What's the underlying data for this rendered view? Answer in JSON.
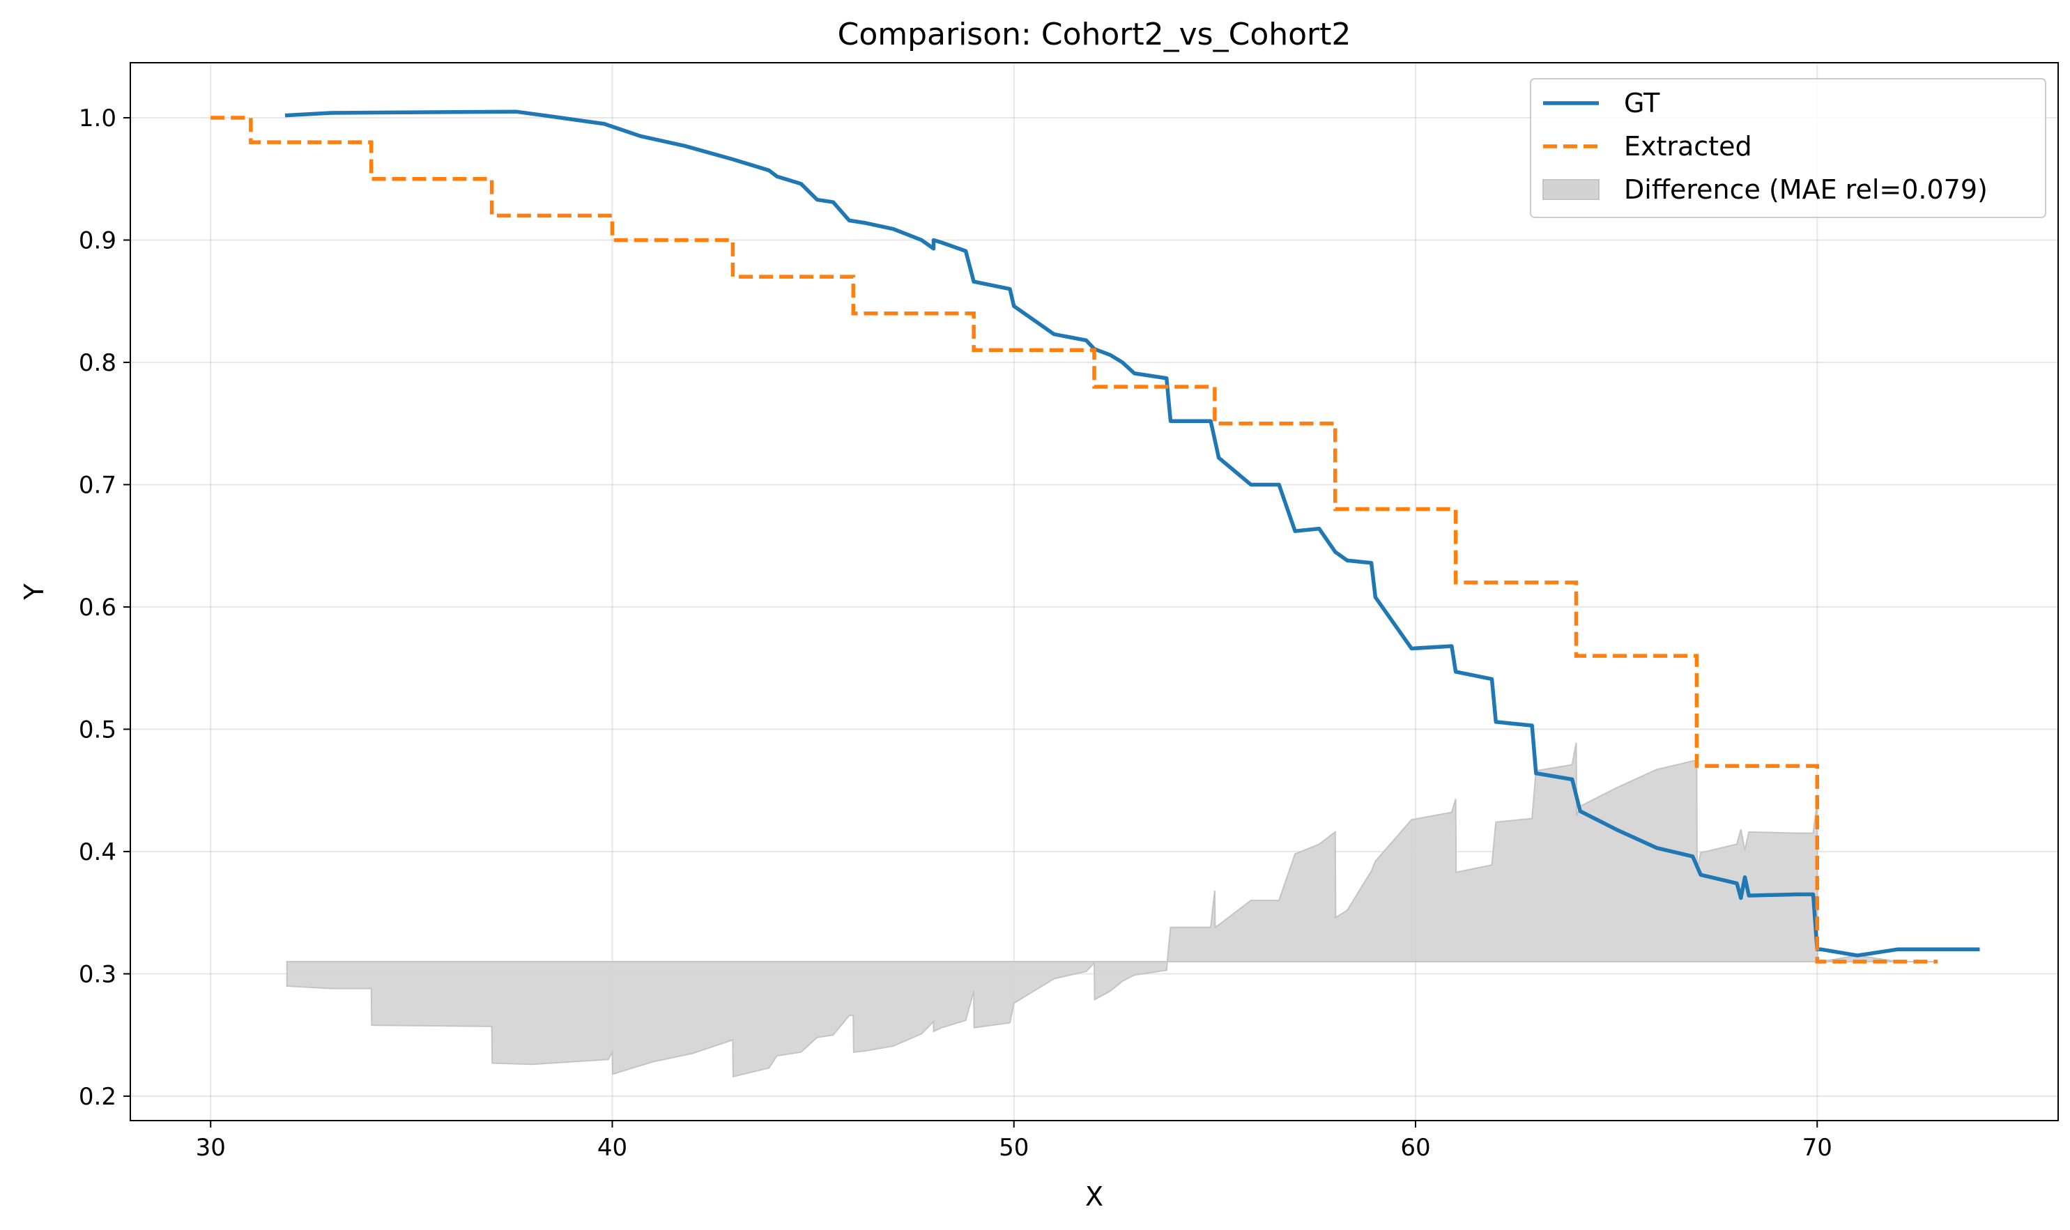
{
  "chart_data": {
    "type": "line",
    "title": "Comparison: Cohort2_vs_Cohort2",
    "xlabel": "X",
    "ylabel": "Y",
    "xlim": [
      28,
      76
    ],
    "ylim": [
      0.18,
      1.045
    ],
    "xticks": [
      30,
      40,
      50,
      60,
      70
    ],
    "yticks": [
      0.2,
      0.3,
      0.4,
      0.5,
      0.6,
      0.7,
      0.8,
      0.9,
      1.0
    ],
    "xtick_labels": [
      "30",
      "40",
      "50",
      "60",
      "70"
    ],
    "ytick_labels": [
      "0.2",
      "0.3",
      "0.4",
      "0.5",
      "0.6",
      "0.7",
      "0.8",
      "0.9",
      "1.0"
    ],
    "grid": true,
    "legend_position": "top-right",
    "series": [
      {
        "name": "GT",
        "style": "solid",
        "color": "#1f77b4",
        "x": [
          31.9,
          33,
          37.6,
          38.5,
          39.8,
          40.7,
          41.8,
          43,
          43.9,
          44.1,
          44.7,
          45.1,
          45.5,
          45.9,
          46.3,
          47,
          47.7,
          48.0,
          48.0,
          48.2,
          48.8,
          49.0,
          49.9,
          50.0,
          51,
          51.8,
          52.0,
          52.4,
          52.7,
          53,
          53.8,
          53.9,
          54.9,
          55.1,
          55.9,
          56.6,
          57.0,
          57.6,
          58.0,
          58.3,
          58.9,
          59.0,
          59.9,
          60.9,
          61.0,
          61.9,
          62.0,
          62.9,
          63.0,
          63.9,
          64.1,
          65.0,
          66.0,
          66.9,
          67.1,
          68.0,
          68.1,
          68.2,
          68.3,
          69.5,
          69.9,
          70.0,
          70.1,
          71,
          72,
          74
        ],
        "y": [
          1.002,
          1.004,
          1.005,
          1.001,
          0.995,
          0.985,
          0.977,
          0.966,
          0.957,
          0.952,
          0.946,
          0.933,
          0.931,
          0.916,
          0.914,
          0.909,
          0.9,
          0.893,
          0.9,
          0.898,
          0.891,
          0.866,
          0.86,
          0.846,
          0.823,
          0.818,
          0.811,
          0.806,
          0.8,
          0.791,
          0.787,
          0.752,
          0.752,
          0.722,
          0.7,
          0.7,
          0.662,
          0.664,
          0.645,
          0.638,
          0.636,
          0.608,
          0.566,
          0.568,
          0.547,
          0.541,
          0.506,
          0.503,
          0.464,
          0.459,
          0.433,
          0.418,
          0.403,
          0.396,
          0.381,
          0.374,
          0.362,
          0.379,
          0.364,
          0.365,
          0.365,
          0.32,
          0.32,
          0.315,
          0.32,
          0.32
        ]
      },
      {
        "name": "Extracted",
        "style": "dashed",
        "color": "#ff7f0e",
        "x": [
          30,
          31,
          34,
          37,
          40,
          43,
          46,
          49,
          52,
          55,
          58,
          61,
          64,
          67,
          70,
          73
        ],
        "y": [
          1.0,
          0.98,
          0.95,
          0.92,
          0.9,
          0.87,
          0.84,
          0.81,
          0.78,
          0.75,
          0.68,
          0.62,
          0.56,
          0.47,
          0.31,
          0.31
        ]
      },
      {
        "name": "Difference (MAE rel=0.079)",
        "style": "fill",
        "color": "#d3d3d3",
        "baseline": 0.31,
        "x": [
          31.9,
          33,
          34,
          34.01,
          37,
          37.01,
          38,
          39.9,
          40.0,
          40.01,
          41,
          42,
          43,
          43.01,
          43.9,
          44.1,
          44.7,
          45.1,
          45.5,
          45.9,
          46,
          46.01,
          46.3,
          47,
          47.7,
          48.0,
          48.0,
          48.2,
          48.8,
          49.0,
          49.01,
          49.9,
          50.0,
          51,
          51.8,
          52.0,
          52.01,
          52.4,
          52.7,
          53,
          53.8,
          53.9,
          54.9,
          55.0,
          55.01,
          55.1,
          55.9,
          56.6,
          57.0,
          57.6,
          58.0,
          58.01,
          58.3,
          58.9,
          59.0,
          59.9,
          60.9,
          61.0,
          61.01,
          61.9,
          62.0,
          62.9,
          63.0,
          63.9,
          64.0,
          64.01,
          64.1,
          65.0,
          66.0,
          66.9,
          67.0,
          67.01,
          67.1,
          68.0,
          68.1,
          68.2,
          68.3,
          69.5,
          69.9,
          70.0,
          70.01,
          70.1,
          71,
          72,
          73
        ],
        "y": [
          0.29,
          0.288,
          0.288,
          0.258,
          0.257,
          0.227,
          0.226,
          0.23,
          0.236,
          0.218,
          0.228,
          0.235,
          0.246,
          0.216,
          0.223,
          0.233,
          0.236,
          0.248,
          0.25,
          0.266,
          0.266,
          0.236,
          0.237,
          0.241,
          0.251,
          0.261,
          0.253,
          0.256,
          0.262,
          0.286,
          0.256,
          0.26,
          0.276,
          0.296,
          0.302,
          0.309,
          0.279,
          0.286,
          0.294,
          0.299,
          0.303,
          0.338,
          0.338,
          0.368,
          0.338,
          0.34,
          0.36,
          0.36,
          0.398,
          0.406,
          0.416,
          0.346,
          0.352,
          0.384,
          0.392,
          0.426,
          0.432,
          0.443,
          0.383,
          0.389,
          0.424,
          0.427,
          0.466,
          0.471,
          0.489,
          0.429,
          0.437,
          0.452,
          0.467,
          0.474,
          0.474,
          0.384,
          0.399,
          0.406,
          0.418,
          0.401,
          0.416,
          0.415,
          0.415,
          0.44,
          0.31,
          0.31,
          0.315,
          0.31,
          0.31
        ]
      }
    ]
  }
}
